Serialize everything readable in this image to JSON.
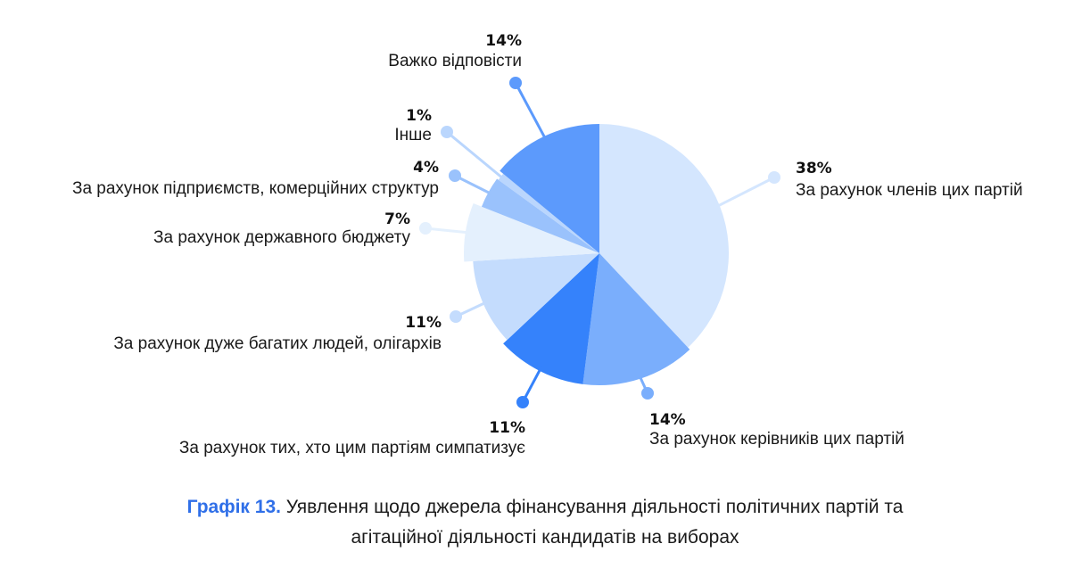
{
  "chart_data": {
    "type": "pie",
    "title": "",
    "slices": [
      {
        "label": "За рахунок членів цих партій",
        "value": 38,
        "value_label": "38%",
        "color": "#d4e6fe"
      },
      {
        "label": "За рахунок керівників цих партій",
        "value": 14,
        "value_label": "14%",
        "color": "#7aaefc"
      },
      {
        "label": "За рахунок тих, хто цим партіям симпатизує",
        "value": 11,
        "value_label": "11%",
        "color": "#3582fb"
      },
      {
        "label": "За рахунок дуже багатих людей, олігархів",
        "value": 11,
        "value_label": "11%",
        "color": "#c4dcfd"
      },
      {
        "label": "За рахунок державного бюджету",
        "value": 7,
        "value_label": "7%",
        "color": "#e4f0fd"
      },
      {
        "label": "За рахунок підприємств, комерційних структур",
        "value": 4,
        "value_label": "4%",
        "color": "#9ac2fc"
      },
      {
        "label": "Інше",
        "value": 1,
        "value_label": "1%",
        "color": "#bad6fd"
      },
      {
        "label": "Важко відповісти",
        "value": 14,
        "value_label": "14%",
        "color": "#5c9afc"
      }
    ],
    "legend": "none"
  },
  "caption": {
    "label": "Графік 13.",
    "line1": "Уявлення щодо джерела фінансування діяльності політичних партій та",
    "line2": "агітаційної діяльності кандидатів на виборах"
  }
}
